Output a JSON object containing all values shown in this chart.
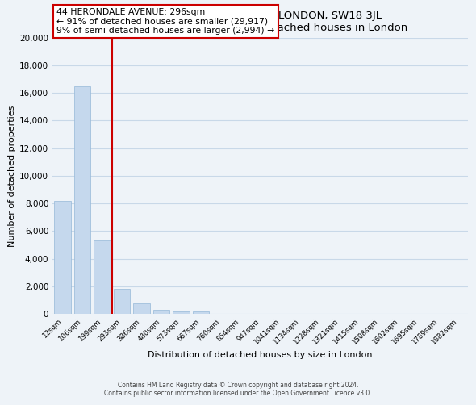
{
  "title": "44, HERONDALE AVENUE, LONDON, SW18 3JL",
  "subtitle": "Size of property relative to detached houses in London",
  "xlabel": "Distribution of detached houses by size in London",
  "ylabel": "Number of detached properties",
  "bar_labels": [
    "12sqm",
    "106sqm",
    "199sqm",
    "293sqm",
    "386sqm",
    "480sqm",
    "573sqm",
    "667sqm",
    "760sqm",
    "854sqm",
    "947sqm",
    "1041sqm",
    "1134sqm",
    "1228sqm",
    "1321sqm",
    "1415sqm",
    "1508sqm",
    "1602sqm",
    "1695sqm",
    "1789sqm",
    "1882sqm"
  ],
  "bar_values": [
    8200,
    16500,
    5300,
    1800,
    750,
    300,
    200,
    200,
    0,
    0,
    0,
    0,
    0,
    0,
    0,
    0,
    0,
    0,
    0,
    0,
    0
  ],
  "bar_color": "#c5d8ed",
  "bar_edge_color": "#95b8d8",
  "property_line_index": 2.5,
  "annotation_title": "44 HERONDALE AVENUE: 296sqm",
  "annotation_line1": "← 91% of detached houses are smaller (29,917)",
  "annotation_line2": "9% of semi-detached houses are larger (2,994) →",
  "annotation_box_color": "#ffffff",
  "annotation_box_edge": "#cc0000",
  "vline_color": "#cc0000",
  "ylim": [
    0,
    20000
  ],
  "yticks": [
    0,
    2000,
    4000,
    6000,
    8000,
    10000,
    12000,
    14000,
    16000,
    18000,
    20000
  ],
  "footer_line1": "Contains HM Land Registry data © Crown copyright and database right 2024.",
  "footer_line2": "Contains public sector information licensed under the Open Government Licence v3.0.",
  "bg_color": "#eef3f8",
  "grid_color": "#c8d8e8",
  "plot_bg_color": "#eef3f8"
}
